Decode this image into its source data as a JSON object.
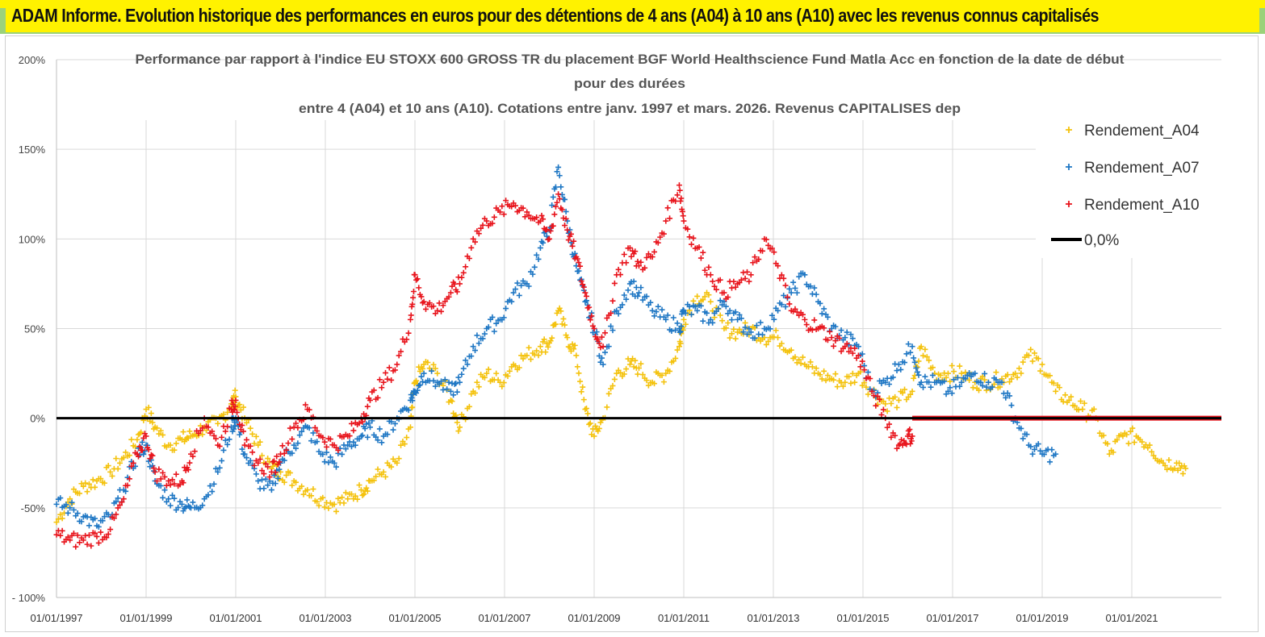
{
  "banner": {
    "title": "ADAM Informe. Evolution historique des performances en euros pour des détentions de 4 ans (A04) à 10 ans (A10) avec les revenus connus capitalisés"
  },
  "colors": {
    "banner_bg": "#fff200",
    "a04": "#f4c20d",
    "a07": "#1f77c4",
    "a10": "#e8141c",
    "zero_line": "#000000"
  },
  "chart_data": {
    "type": "scatter",
    "title_lines": [
      "Performance par rapport à l'indice EU STOXX 600 GROSS TR  du placement BGF World Healthscience Fund Matla Acc en fonction de la date de début",
      "pour des durées",
      "entre 4 (A04) et 10 ans (A10). Cotations entre janv. 1997 et mars. 2026. Revenus CAPITALISES dep"
    ],
    "xlim": [
      1997.0,
      2023.0
    ],
    "ylim": [
      -100,
      200
    ],
    "y_ticks": [
      200,
      150,
      100,
      50,
      0,
      -50,
      -100
    ],
    "y_tick_labels": [
      "200%",
      "150%",
      "100%",
      "50%",
      "0%",
      "-50%",
      "- 100%"
    ],
    "x_ticks": [
      1997,
      1999,
      2001,
      2003,
      2005,
      2007,
      2009,
      2011,
      2013,
      2015,
      2017,
      2019,
      2021
    ],
    "x_tick_labels": [
      "01/01/1997",
      "01/01/1999",
      "01/01/2001",
      "01/01/2003",
      "01/01/2005",
      "01/01/2007",
      "01/01/2009",
      "01/01/2011",
      "01/01/2013",
      "01/01/2015",
      "01/01/2017",
      "01/01/2019",
      "01/01/2021"
    ],
    "legend_position": "top-right",
    "series": [
      {
        "name": "Rendement_A04",
        "x": [
          1997.0,
          1997.3,
          1997.6,
          1997.9,
          1998.2,
          1998.5,
          1998.8,
          1999.0,
          1999.2,
          1999.5,
          1999.8,
          2000.0,
          2000.3,
          2000.6,
          2000.9,
          2001.0,
          2001.2,
          2001.5,
          2001.8,
          2002.0,
          2002.3,
          2002.6,
          2002.9,
          2003.2,
          2003.5,
          2003.8,
          2004.0,
          2004.3,
          2004.6,
          2004.9,
          2005.0,
          2005.2,
          2005.5,
          2005.8,
          2006.0,
          2006.3,
          2006.6,
          2006.9,
          2007.2,
          2007.5,
          2007.8,
          2008.0,
          2008.2,
          2008.4,
          2008.6,
          2008.8,
          2009.0,
          2009.2,
          2009.5,
          2009.8,
          2010.0,
          2010.3,
          2010.6,
          2010.9,
          2011.0,
          2011.3,
          2011.6,
          2011.9,
          2012.2,
          2012.5,
          2012.8,
          2013.1,
          2013.4,
          2013.7,
          2014.0,
          2014.3,
          2014.6,
          2014.9,
          2015.2,
          2015.5,
          2015.8,
          2016.1,
          2016.3,
          2016.6,
          2016.9,
          2017.2,
          2017.5,
          2017.8,
          2018.1,
          2018.4,
          2018.7,
          2019.0,
          2019.3,
          2019.6,
          2019.9,
          2020.2,
          2020.5,
          2020.8,
          2021.1,
          2021.4,
          2021.7,
          2022.0,
          2022.2
        ],
        "y": [
          -58,
          -45,
          -38,
          -35,
          -30,
          -22,
          -12,
          5,
          -5,
          -15,
          -12,
          -10,
          -5,
          -3,
          8,
          12,
          0,
          -15,
          -28,
          -30,
          -35,
          -40,
          -45,
          -48,
          -45,
          -40,
          -35,
          -30,
          -25,
          -5,
          20,
          30,
          25,
          10,
          -5,
          15,
          25,
          20,
          30,
          35,
          40,
          42,
          60,
          45,
          35,
          5,
          -10,
          0,
          25,
          30,
          28,
          20,
          25,
          40,
          55,
          68,
          65,
          50,
          48,
          50,
          45,
          45,
          38,
          30,
          25,
          22,
          20,
          25,
          15,
          8,
          10,
          15,
          40,
          25,
          25,
          25,
          20,
          20,
          22,
          25,
          35,
          30,
          15,
          10,
          5,
          0,
          -20,
          -10,
          -10,
          -15,
          -25,
          -25,
          -28
        ],
        "color": "#f4c20d"
      },
      {
        "name": "Rendement_A07",
        "x": [
          1997.0,
          1997.3,
          1997.6,
          1997.9,
          1998.2,
          1998.5,
          1998.8,
          1999.0,
          1999.2,
          1999.5,
          1999.8,
          2000.0,
          2000.3,
          2000.6,
          2000.9,
          2001.0,
          2001.2,
          2001.5,
          2001.8,
          2002.0,
          2002.3,
          2002.6,
          2002.9,
          2003.2,
          2003.5,
          2003.8,
          2004.0,
          2004.3,
          2004.6,
          2004.9,
          2005.0,
          2005.2,
          2005.5,
          2005.8,
          2006.0,
          2006.3,
          2006.6,
          2006.9,
          2007.2,
          2007.5,
          2007.8,
          2008.0,
          2008.2,
          2008.4,
          2008.6,
          2008.8,
          2009.0,
          2009.2,
          2009.5,
          2009.8,
          2010.0,
          2010.3,
          2010.6,
          2010.9,
          2011.0,
          2011.3,
          2011.6,
          2011.9,
          2012.2,
          2012.5,
          2012.8,
          2013.1,
          2013.4,
          2013.7,
          2014.0,
          2014.3,
          2014.6,
          2014.9,
          2015.2,
          2015.5,
          2015.8,
          2016.1,
          2016.3,
          2016.6,
          2016.9,
          2017.2,
          2017.5,
          2017.8,
          2018.1,
          2018.4,
          2018.7,
          2019.0,
          2019.3
        ],
        "y": [
          -48,
          -50,
          -55,
          -60,
          -55,
          -40,
          -20,
          -15,
          -35,
          -45,
          -48,
          -50,
          -45,
          -30,
          -5,
          0,
          -20,
          -35,
          -40,
          -25,
          -15,
          -5,
          -20,
          -25,
          -15,
          -10,
          -5,
          -10,
          0,
          10,
          15,
          25,
          20,
          15,
          20,
          40,
          50,
          55,
          70,
          75,
          95,
          105,
          140,
          110,
          85,
          65,
          50,
          30,
          60,
          75,
          70,
          60,
          55,
          50,
          60,
          60,
          55,
          65,
          55,
          48,
          50,
          60,
          70,
          80,
          65,
          50,
          45,
          40,
          15,
          20,
          30,
          40,
          20,
          20,
          15,
          20,
          25,
          20,
          20,
          0,
          -15,
          -20,
          -20
        ],
        "color": "#1f77c4"
      },
      {
        "name": "Rendement_A10",
        "x": [
          1997.0,
          1997.3,
          1997.6,
          1997.9,
          1998.2,
          1998.5,
          1998.8,
          1999.0,
          1999.2,
          1999.5,
          1999.8,
          2000.0,
          2000.3,
          2000.6,
          2000.9,
          2001.0,
          2001.2,
          2001.5,
          2001.8,
          2002.0,
          2002.3,
          2002.6,
          2002.9,
          2003.2,
          2003.5,
          2003.8,
          2004.0,
          2004.3,
          2004.6,
          2004.9,
          2005.0,
          2005.2,
          2005.5,
          2005.8,
          2006.0,
          2006.3,
          2006.6,
          2006.9,
          2007.2,
          2007.5,
          2007.8,
          2008.0,
          2008.2,
          2008.4,
          2008.6,
          2008.8,
          2009.0,
          2009.2,
          2009.5,
          2009.8,
          2010.0,
          2010.3,
          2010.6,
          2010.9,
          2011.0,
          2011.3,
          2011.6,
          2011.9,
          2012.2,
          2012.5,
          2012.8,
          2013.1,
          2013.4,
          2013.7,
          2014.0,
          2014.3,
          2014.6,
          2014.9,
          2015.2,
          2015.5,
          2015.8,
          2016.0,
          2016.1
        ],
        "y": [
          -65,
          -68,
          -68,
          -66,
          -62,
          -45,
          -20,
          -10,
          -30,
          -35,
          -35,
          -20,
          0,
          -15,
          5,
          10,
          -15,
          -25,
          -30,
          -20,
          -5,
          5,
          -10,
          -15,
          -10,
          0,
          10,
          20,
          30,
          55,
          80,
          65,
          60,
          70,
          75,
          100,
          110,
          115,
          120,
          115,
          110,
          100,
          125,
          105,
          90,
          70,
          50,
          40,
          80,
          95,
          85,
          90,
          110,
          130,
          110,
          95,
          80,
          70,
          75,
          80,
          100,
          85,
          60,
          55,
          50,
          45,
          40,
          35,
          15,
          0,
          -15,
          -10,
          -10
        ],
        "color": "#e8141c"
      },
      {
        "name": "Rendement_A10_tail",
        "x": [
          2016.1,
          2023.0
        ],
        "y": [
          0,
          0
        ],
        "color": "#e8141c"
      },
      {
        "name": "0,0%",
        "x": [
          1997.0,
          2023.0
        ],
        "y": [
          0,
          0
        ],
        "color": "#000000"
      }
    ]
  },
  "legend": {
    "items": [
      "Rendement_A04",
      "Rendement_A07",
      "Rendement_A10",
      "0,0%"
    ]
  }
}
